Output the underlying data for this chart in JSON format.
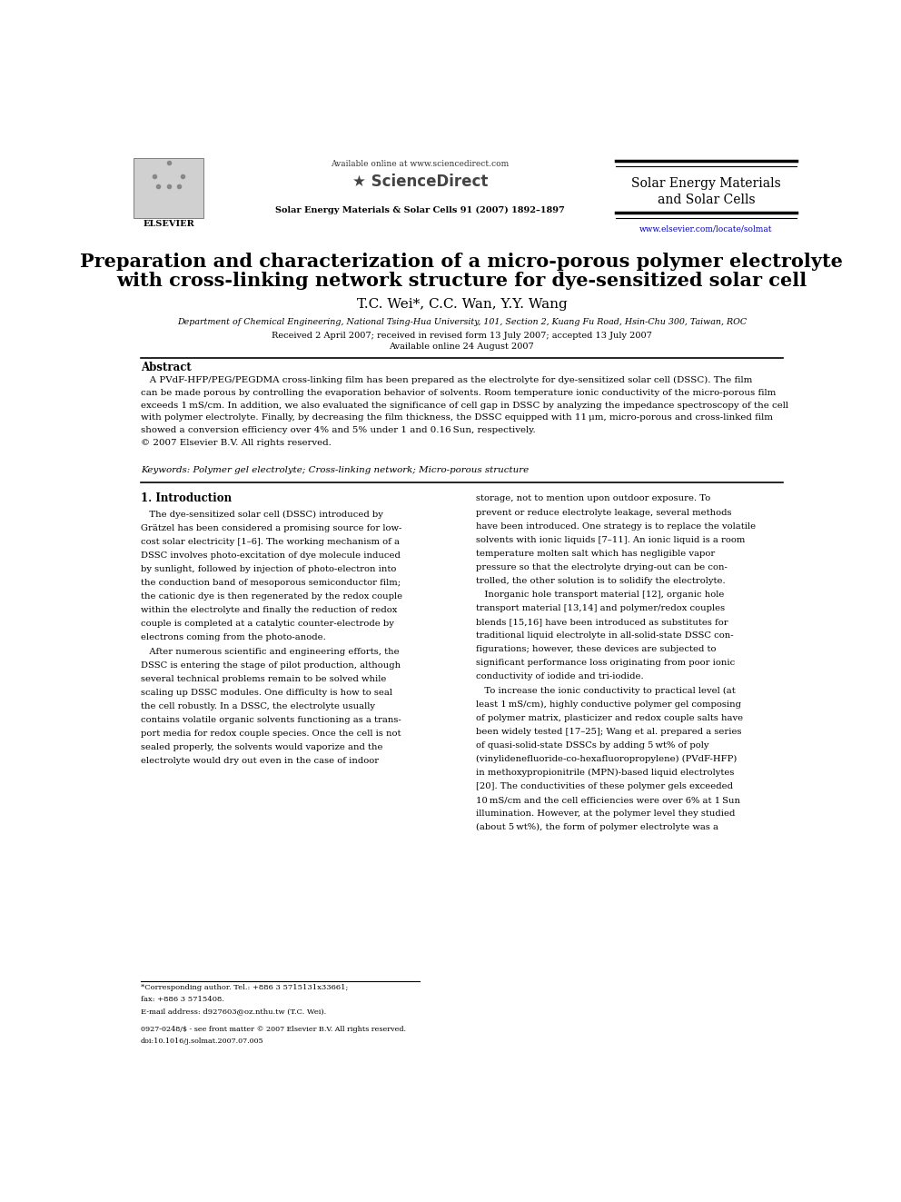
{
  "bg_color": "#ffffff",
  "header": {
    "available_online": "Available online at www.sciencedirect.com",
    "sciencedirect_text": "ScienceDirect",
    "journal_name_line1": "Solar Energy Materials",
    "journal_name_line2": "and Solar Cells",
    "journal_info": "Solar Energy Materials & Solar Cells 91 (2007) 1892–1897",
    "elsevier_text": "ELSEVIER",
    "website": "www.elsevier.com/locate/solmat"
  },
  "title_line1": "Preparation and characterization of a micro-porous polymer electrolyte",
  "title_line2": "with cross-linking network structure for dye-sensitized solar cell",
  "authors": "T.C. Wei*, C.C. Wan, Y.Y. Wang",
  "affiliation": "Department of Chemical Engineering, National Tsing-Hua University, 101, Section 2, Kuang Fu Road, Hsin-Chu 300, Taiwan, ROC",
  "received": "Received 2 April 2007; received in revised form 13 July 2007; accepted 13 July 2007",
  "available": "Available online 24 August 2007",
  "abstract_title": "Abstract",
  "abstract_lines": [
    "   A PVdF-HFP/PEG/PEGDMA cross-linking film has been prepared as the electrolyte for dye-sensitized solar cell (DSSC). The film",
    "can be made porous by controlling the evaporation behavior of solvents. Room temperature ionic conductivity of the micro-porous film",
    "exceeds 1 mS/cm. In addition, we also evaluated the significance of cell gap in DSSC by analyzing the impedance spectroscopy of the cell",
    "with polymer electrolyte. Finally, by decreasing the film thickness, the DSSC equipped with 11 μm, micro-porous and cross-linked film",
    "showed a conversion efficiency over 4% and 5% under 1 and 0.16 Sun, respectively.",
    "© 2007 Elsevier B.V. All rights reserved."
  ],
  "keywords": "Keywords: Polymer gel electrolyte; Cross-linking network; Micro-porous structure",
  "section1_title": "1. Introduction",
  "col1_lines": [
    "   The dye-sensitized solar cell (DSSC) introduced by",
    "Grätzel has been considered a promising source for low-",
    "cost solar electricity [1–6]. The working mechanism of a",
    "DSSC involves photo-excitation of dye molecule induced",
    "by sunlight, followed by injection of photo-electron into",
    "the conduction band of mesoporous semiconductor film;",
    "the cationic dye is then regenerated by the redox couple",
    "within the electrolyte and finally the reduction of redox",
    "couple is completed at a catalytic counter-electrode by",
    "electrons coming from the photo-anode.",
    "   After numerous scientific and engineering efforts, the",
    "DSSC is entering the stage of pilot production, although",
    "several technical problems remain to be solved while",
    "scaling up DSSC modules. One difficulty is how to seal",
    "the cell robustly. In a DSSC, the electrolyte usually",
    "contains volatile organic solvents functioning as a trans-",
    "port media for redox couple species. Once the cell is not",
    "sealed properly, the solvents would vaporize and the",
    "electrolyte would dry out even in the case of indoor"
  ],
  "col2_lines": [
    "storage, not to mention upon outdoor exposure. To",
    "prevent or reduce electrolyte leakage, several methods",
    "have been introduced. One strategy is to replace the volatile",
    "solvents with ionic liquids [7–11]. An ionic liquid is a room",
    "temperature molten salt which has negligible vapor",
    "pressure so that the electrolyte drying-out can be con-",
    "trolled, the other solution is to solidify the electrolyte.",
    "   Inorganic hole transport material [12], organic hole",
    "transport material [13,14] and polymer/redox couples",
    "blends [15,16] have been introduced as substitutes for",
    "traditional liquid electrolyte in all-solid-state DSSC con-",
    "figurations; however, these devices are subjected to",
    "significant performance loss originating from poor ionic",
    "conductivity of iodide and tri-iodide.",
    "   To increase the ionic conductivity to practical level (at",
    "least 1 mS/cm), highly conductive polymer gel composing",
    "of polymer matrix, plasticizer and redox couple salts have",
    "been widely tested [17–25]; Wang et al. prepared a series",
    "of quasi-solid-state DSSCs by adding 5 wt% of poly",
    "(vinylidenefluoride-co-hexafluoropropylene) (PVdF-HFP)",
    "in methoxypropionitrile (MPN)-based liquid electrolytes",
    "[20]. The conductivities of these polymer gels exceeded",
    "10 mS/cm and the cell efficiencies were over 6% at 1 Sun",
    "illumination. However, at the polymer level they studied",
    "(about 5 wt%), the form of polymer electrolyte was a"
  ],
  "footnote_lines": [
    "*Corresponding author. Tel.: +886 3 5715131x33661;",
    "fax: +886 3 5715408.",
    "E-mail address: d927603@oz.nthu.tw (T.C. Wei)."
  ],
  "bottom_lines": [
    "0927-0248/$ - see front matter © 2007 Elsevier B.V. All rights reserved.",
    "doi:10.1016/j.solmat.2007.07.005"
  ]
}
